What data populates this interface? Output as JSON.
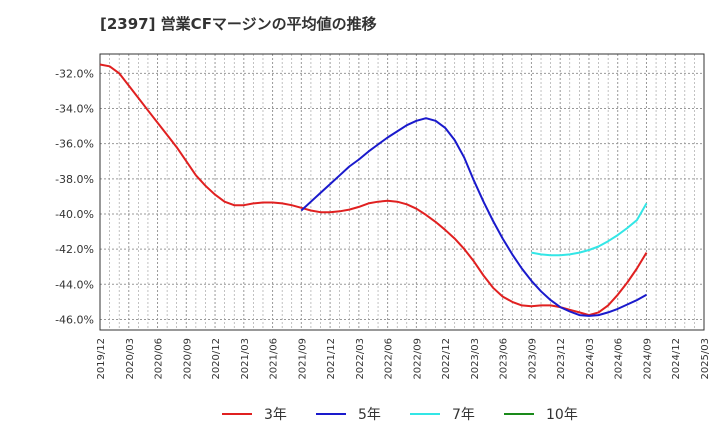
{
  "chart_data": {
    "type": "line",
    "title": "[2397]  営業CFマージンの平均値の推移",
    "xlabel": "",
    "ylabel": "",
    "ylim": [
      -46.6,
      -30.9
    ],
    "grid": true,
    "legend_position": "bottom",
    "y_ticks": [
      "-32.0%",
      "-34.0%",
      "-36.0%",
      "-38.0%",
      "-40.0%",
      "-42.0%",
      "-44.0%",
      "-46.0%"
    ],
    "y_tick_values": [
      -32,
      -34,
      -36,
      -38,
      -40,
      -42,
      -44,
      -46
    ],
    "x_ticks": [
      "2019/12",
      "2020/03",
      "2020/06",
      "2020/09",
      "2020/12",
      "2021/03",
      "2021/06",
      "2021/09",
      "2021/12",
      "2022/03",
      "2022/06",
      "2022/09",
      "2022/12",
      "2023/03",
      "2023/06",
      "2023/09",
      "2023/12",
      "2024/03",
      "2024/06",
      "2024/09",
      "2024/12",
      "2025/03"
    ],
    "series": [
      {
        "name": "3年",
        "color": "#e02020",
        "points": [
          [
            "2019/12",
            -31.5
          ],
          [
            "2020/01",
            -31.6
          ],
          [
            "2020/02",
            -32.0
          ],
          [
            "2020/03",
            -32.7
          ],
          [
            "2020/04",
            -33.4
          ],
          [
            "2020/05",
            -34.1
          ],
          [
            "2020/06",
            -34.8
          ],
          [
            "2020/07",
            -35.5
          ],
          [
            "2020/08",
            -36.2
          ],
          [
            "2020/09",
            -37.0
          ],
          [
            "2020/10",
            -37.8
          ],
          [
            "2020/11",
            -38.4
          ],
          [
            "2020/12",
            -38.9
          ],
          [
            "2021/01",
            -39.3
          ],
          [
            "2021/02",
            -39.5
          ],
          [
            "2021/03",
            -39.5
          ],
          [
            "2021/04",
            -39.4
          ],
          [
            "2021/05",
            -39.35
          ],
          [
            "2021/06",
            -39.35
          ],
          [
            "2021/07",
            -39.4
          ],
          [
            "2021/08",
            -39.5
          ],
          [
            "2021/09",
            -39.65
          ],
          [
            "2021/10",
            -39.8
          ],
          [
            "2021/11",
            -39.9
          ],
          [
            "2021/12",
            -39.9
          ],
          [
            "2022/01",
            -39.85
          ],
          [
            "2022/02",
            -39.75
          ],
          [
            "2022/03",
            -39.6
          ],
          [
            "2022/04",
            -39.4
          ],
          [
            "2022/05",
            -39.3
          ],
          [
            "2022/06",
            -39.25
          ],
          [
            "2022/07",
            -39.3
          ],
          [
            "2022/08",
            -39.45
          ],
          [
            "2022/09",
            -39.7
          ],
          [
            "2022/10",
            -40.05
          ],
          [
            "2022/11",
            -40.45
          ],
          [
            "2022/12",
            -40.9
          ],
          [
            "2023/01",
            -41.4
          ],
          [
            "2023/02",
            -42.0
          ],
          [
            "2023/03",
            -42.7
          ],
          [
            "2023/04",
            -43.5
          ],
          [
            "2023/05",
            -44.2
          ],
          [
            "2023/06",
            -44.7
          ],
          [
            "2023/07",
            -45.0
          ],
          [
            "2023/08",
            -45.2
          ],
          [
            "2023/09",
            -45.25
          ],
          [
            "2023/10",
            -45.2
          ],
          [
            "2023/11",
            -45.2
          ],
          [
            "2023/12",
            -45.3
          ],
          [
            "2024/01",
            -45.45
          ],
          [
            "2024/02",
            -45.6
          ],
          [
            "2024/03",
            -45.75
          ],
          [
            "2024/04",
            -45.6
          ],
          [
            "2024/05",
            -45.2
          ],
          [
            "2024/06",
            -44.6
          ],
          [
            "2024/07",
            -43.9
          ],
          [
            "2024/08",
            -43.1
          ],
          [
            "2024/09",
            -42.2
          ]
        ]
      },
      {
        "name": "5年",
        "color": "#1a1acc",
        "points": [
          [
            "2021/09",
            -39.8
          ],
          [
            "2021/10",
            -39.3
          ],
          [
            "2021/11",
            -38.8
          ],
          [
            "2021/12",
            -38.3
          ],
          [
            "2022/01",
            -37.8
          ],
          [
            "2022/02",
            -37.3
          ],
          [
            "2022/03",
            -36.9
          ],
          [
            "2022/04",
            -36.45
          ],
          [
            "2022/05",
            -36.05
          ],
          [
            "2022/06",
            -35.65
          ],
          [
            "2022/07",
            -35.3
          ],
          [
            "2022/08",
            -34.95
          ],
          [
            "2022/09",
            -34.7
          ],
          [
            "2022/10",
            -34.55
          ],
          [
            "2022/11",
            -34.7
          ],
          [
            "2022/12",
            -35.1
          ],
          [
            "2023/01",
            -35.8
          ],
          [
            "2023/02",
            -36.8
          ],
          [
            "2023/03",
            -38.1
          ],
          [
            "2023/04",
            -39.3
          ],
          [
            "2023/05",
            -40.4
          ],
          [
            "2023/06",
            -41.4
          ],
          [
            "2023/07",
            -42.3
          ],
          [
            "2023/08",
            -43.1
          ],
          [
            "2023/09",
            -43.8
          ],
          [
            "2023/10",
            -44.4
          ],
          [
            "2023/11",
            -44.9
          ],
          [
            "2023/12",
            -45.3
          ],
          [
            "2024/01",
            -45.55
          ],
          [
            "2024/02",
            -45.75
          ],
          [
            "2024/03",
            -45.8
          ],
          [
            "2024/04",
            -45.75
          ],
          [
            "2024/05",
            -45.6
          ],
          [
            "2024/06",
            -45.4
          ],
          [
            "2024/07",
            -45.15
          ],
          [
            "2024/08",
            -44.9
          ],
          [
            "2024/09",
            -44.6
          ]
        ]
      },
      {
        "name": "7年",
        "color": "#33e6e6",
        "points": [
          [
            "2023/09",
            -42.2
          ],
          [
            "2023/10",
            -42.3
          ],
          [
            "2023/11",
            -42.35
          ],
          [
            "2023/12",
            -42.35
          ],
          [
            "2024/01",
            -42.3
          ],
          [
            "2024/02",
            -42.2
          ],
          [
            "2024/03",
            -42.05
          ],
          [
            "2024/04",
            -41.85
          ],
          [
            "2024/05",
            -41.55
          ],
          [
            "2024/06",
            -41.2
          ],
          [
            "2024/07",
            -40.8
          ],
          [
            "2024/08",
            -40.35
          ],
          [
            "2024/09",
            -39.4
          ]
        ]
      },
      {
        "name": "10年",
        "color": "#1a8a1a",
        "points": []
      }
    ]
  }
}
